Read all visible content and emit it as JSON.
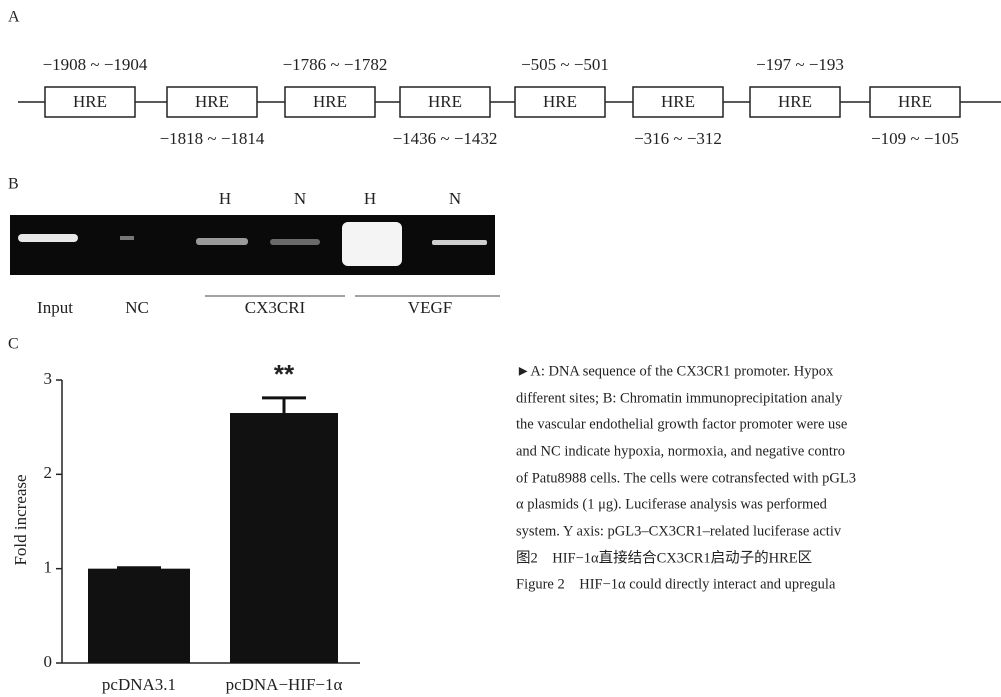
{
  "panel_a": {
    "label": "A",
    "sites": [
      {
        "box": "HRE",
        "position": "−1908 ~ −1904"
      },
      {
        "box": "HRE",
        "position": "−1818 ~ −1814"
      },
      {
        "box": "HRE",
        "position": "−1786 ~ −1782"
      },
      {
        "box": "HRE",
        "position": "−1436 ~ −1432"
      },
      {
        "box": "HRE",
        "position": "−505 ~ −501"
      },
      {
        "box": "HRE",
        "position": "−316 ~ −312"
      },
      {
        "box": "HRE",
        "position": "−197 ~ −193"
      },
      {
        "box": "HRE",
        "position": "−109 ~ −105"
      }
    ]
  },
  "panel_b": {
    "label": "B",
    "lane_conditions": [
      "H",
      "N",
      "H",
      "N"
    ],
    "lanes": [
      "Input",
      "NC",
      "CX3CRI",
      "VEGF"
    ]
  },
  "chart_data": {
    "type": "bar",
    "label": "C",
    "y_label": "Fold increase",
    "categories": [
      "pcDNA3.1",
      "pcDNA−HIF−1α"
    ],
    "values": [
      1.0,
      2.65
    ],
    "errors": [
      0.01,
      0.16
    ],
    "color": "#111111",
    "annotation": "**",
    "ylim": [
      0,
      3
    ],
    "yticks": [
      0,
      1,
      2,
      3
    ]
  },
  "caption": {
    "lines": [
      "►A: DNA sequence of the CX3CR1 promoter. Hypox",
      "different sites; B: Chromatin immunoprecipitation analy",
      "the vascular endothelial growth factor promoter were use",
      "and NC indicate hypoxia, normoxia, and negative contro",
      "of Patu8988 cells. The cells were cotransfected with pGL3",
      "α plasmids (1 μg). Luciferase analysis was performed",
      "system. Y axis: pGL3–CX3CR1–related luciferase activ",
      "图2　HIF−1α直接结合CX3CR1启动子的HRE区",
      "Figure 2　HIF−1α could directly interact and upregula"
    ]
  }
}
